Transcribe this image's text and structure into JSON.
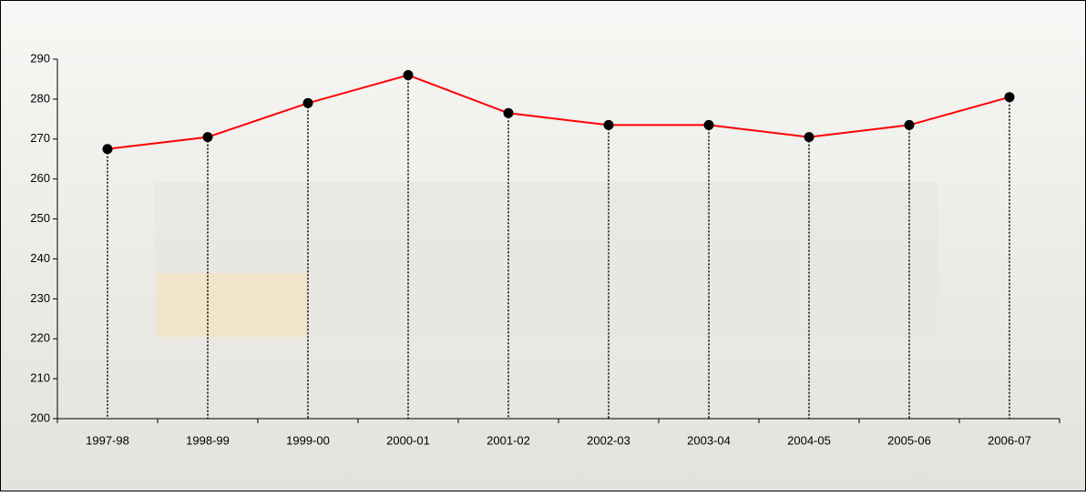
{
  "chart_data": {
    "type": "line",
    "categories": [
      "1997-98",
      "1998-99",
      "1999-00",
      "2000-01",
      "2001-02",
      "2002-03",
      "2003-04",
      "2004-05",
      "2005-06",
      "2006-07"
    ],
    "series": [
      {
        "color": "#ff0000",
        "values": [
          267.5,
          270.5,
          279,
          286,
          276.5,
          273.5,
          273.5,
          270.5,
          273.5,
          280.5
        ]
      }
    ],
    "ylim": [
      200,
      290
    ],
    "yticks": [
      200,
      210,
      220,
      230,
      240,
      250,
      260,
      270,
      280,
      290
    ],
    "drop_lines": true
  }
}
